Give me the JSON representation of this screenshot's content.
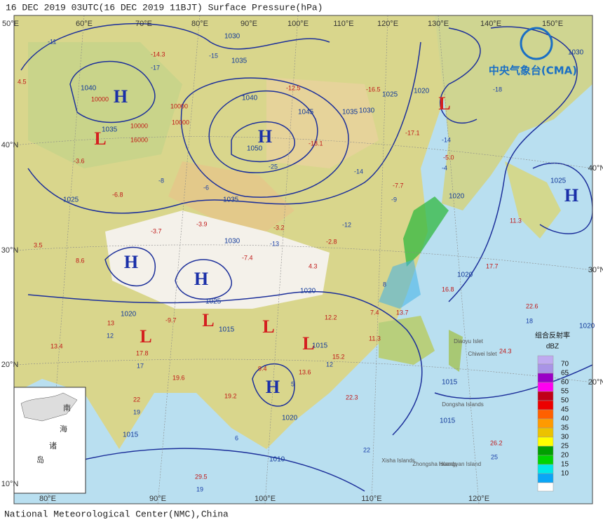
{
  "header": {
    "title": "16  DEC 2019 03UTC(16  DEC 2019 11BJT) Surface Pressure(hPa)"
  },
  "footer": {
    "credit": "National Meteorological Center(NMC),China"
  },
  "logo": {
    "text": "中央气象台(CMA)"
  },
  "axes": {
    "top": [
      "50°E",
      "60°E",
      "70°E",
      "80°E",
      "90°E",
      "100°E",
      "110°E",
      "120°E",
      "130°E",
      "140°E",
      "150°E"
    ],
    "bottom": [
      "80°E",
      "90°E",
      "100°E",
      "110°E",
      "120°E"
    ],
    "left": [
      "40°N",
      "30°N",
      "20°N",
      "10°N"
    ],
    "right": [
      "40°N",
      "30°N",
      "20°N"
    ]
  },
  "centers": [
    "H",
    "H",
    "H",
    "H",
    "H",
    "H",
    "L",
    "L",
    "L",
    "L",
    "L",
    "L"
  ],
  "isobars": [
    "1030",
    "1035",
    "1040",
    "1035",
    "1040",
    "1045",
    "1050",
    "1035",
    "1030",
    "1025",
    "1020",
    "1035",
    "1030",
    "1025",
    "1020",
    "1015",
    "1020",
    "1015",
    "1020",
    "1025",
    "1020",
    "1015",
    "1015",
    "1010",
    "1020",
    "1025",
    "1030",
    "1015",
    "1020"
  ],
  "isobar_values": [
    "10000",
    "10000",
    "10000",
    "10000",
    "16000"
  ],
  "temperatures": [
    "-14.3",
    "4.5",
    "-3.6",
    "-6.8",
    "-3.7",
    "3.5",
    "8.6",
    "-3.9",
    "-7.4",
    "-12.5",
    "-18.1",
    "-16.5",
    "-17.1",
    "-7.7",
    "-5.0",
    "-3.2",
    "-2.8",
    "4.3",
    "-9.7",
    "13",
    "13.4",
    "17.8",
    "19.6",
    "22",
    "19.2",
    "9.4",
    "13.6",
    "12.2",
    "15.2",
    "7.4",
    "13.7",
    "22.3",
    "11.3",
    "16.8",
    "22.6",
    "17.7",
    "11.3",
    "24.3",
    "26.2",
    "29.5"
  ],
  "dewpoints": [
    "-17",
    "-11",
    "-15",
    "-18",
    "-8",
    "-14",
    "-9",
    "-6",
    "-12",
    "-13",
    "-25",
    "-14",
    "-4",
    "12",
    "17",
    "19",
    "12",
    "5",
    "6",
    "8",
    "18",
    "22",
    "25",
    "19"
  ],
  "islands": [
    "Diaoyu Islet",
    "Chiwei Islet",
    "Dongsha Islands",
    "Xisha Islands",
    "Zhongsha Islands",
    "Huangyan Island"
  ],
  "inset": [
    "南",
    "海",
    "诸",
    "岛"
  ],
  "legend": {
    "title": "组合反射率",
    "unit": "dBZ",
    "levels": [
      "70",
      "65",
      "60",
      "55",
      "50",
      "45",
      "40",
      "35",
      "30",
      "25",
      "20",
      "15",
      "10"
    ]
  }
}
